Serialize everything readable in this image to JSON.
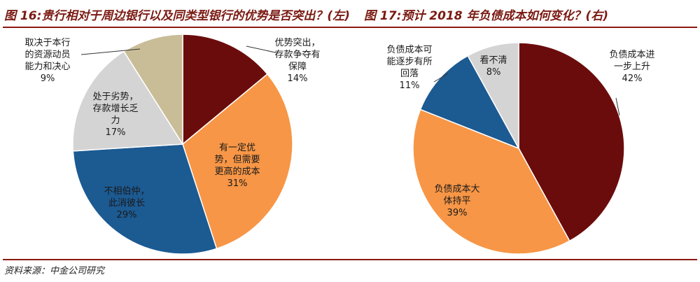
{
  "header": {
    "left_title": "图 16:贵行相对于周边银行以及同类型银行的优势是否突出？(左)",
    "right_title": "图 17:预计 2018 年负债成本如何变化？(右)"
  },
  "footer": {
    "source": "资料来源：中金公司研究"
  },
  "chart_data": [
    {
      "type": "pie",
      "title": "贵行相对于周边银行以及同类型银行的优势是否突出？",
      "slices": [
        {
          "label": "优势突出，存款争夺有保障",
          "label_lines": [
            "优势突出，",
            "存款争夺有",
            "保障"
          ],
          "value": 14,
          "value_text": "14%",
          "color": "#6b0c0c"
        },
        {
          "label": "有一定优势，但需要更高的成本",
          "label_lines": [
            "有一定优",
            "势，但需要",
            "更高的成本"
          ],
          "value": 31,
          "value_text": "31%",
          "color": "#f79646"
        },
        {
          "label": "不相伯仲，此消彼长",
          "label_lines": [
            "不相伯仲，",
            "此消彼长"
          ],
          "value": 29,
          "value_text": "29%",
          "color": "#1c5a92"
        },
        {
          "label": "处于劣势，存款增长乏力",
          "label_lines": [
            "处于劣势，",
            "存款增长乏",
            "力"
          ],
          "value": 17,
          "value_text": "17%",
          "color": "#d4d4d4"
        },
        {
          "label": "取决于本行的资源动员能力和决心",
          "label_lines": [
            "取决于本行",
            "的资源动员",
            "能力和决心"
          ],
          "value": 9,
          "value_text": "9%",
          "color": "#c9bd98"
        }
      ]
    },
    {
      "type": "pie",
      "title": "预计 2018 年负债成本如何变化？",
      "slices": [
        {
          "label": "负债成本进一步上升",
          "label_lines": [
            "负债成本进",
            "一步上升"
          ],
          "value": 42,
          "value_text": "42%",
          "color": "#6b0c0c"
        },
        {
          "label": "负债成本大体持平",
          "label_lines": [
            "负债成本大",
            "体持平"
          ],
          "value": 39,
          "value_text": "39%",
          "color": "#f79646"
        },
        {
          "label": "负债成本可能逐步有所回落",
          "label_lines": [
            "负债成本可",
            "能逐步有所",
            "回落"
          ],
          "value": 11,
          "value_text": "11%",
          "color": "#1c5a92"
        },
        {
          "label": "看不清",
          "label_lines": [
            "看不清"
          ],
          "value": 8,
          "value_text": "8%",
          "color": "#d4d4d4"
        }
      ]
    }
  ]
}
